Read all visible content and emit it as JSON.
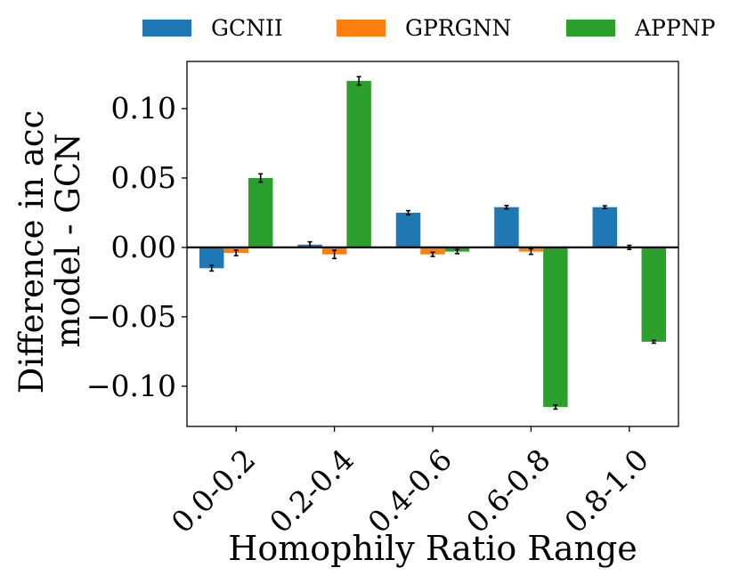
{
  "chart_data": {
    "type": "bar",
    "title": "",
    "xlabel": "Homophily Ratio Range",
    "ylabel_line1": "Difference in acc",
    "ylabel_line2": "model - GCN",
    "categories": [
      "0.0-0.2",
      "0.2-0.4",
      "0.4-0.6",
      "0.6-0.8",
      "0.8-1.0"
    ],
    "series": [
      {
        "name": "GCNII",
        "color": "#1f77b4",
        "values": [
          -0.015,
          0.002,
          0.025,
          0.029,
          0.029
        ],
        "errors": [
          0.002,
          0.002,
          0.0015,
          0.0012,
          0.001
        ]
      },
      {
        "name": "GPRGNN",
        "color": "#ff7f0e",
        "values": [
          -0.004,
          -0.005,
          -0.005,
          -0.003,
          0.0
        ],
        "errors": [
          0.002,
          0.003,
          0.0015,
          0.002,
          0.0015
        ]
      },
      {
        "name": "APPNP",
        "color": "#2ca02c",
        "values": [
          0.05,
          0.12,
          -0.003,
          -0.115,
          -0.068
        ],
        "errors": [
          0.003,
          0.003,
          0.0015,
          0.0015,
          0.001
        ]
      }
    ],
    "yticks": [
      -0.1,
      -0.05,
      0.0,
      0.05,
      0.1
    ],
    "ytick_labels": [
      "−0.10",
      "−0.05",
      "0.00",
      "0.05",
      "0.10"
    ],
    "ylim": [
      -0.129,
      0.134
    ],
    "grid": false,
    "legend": "top"
  }
}
